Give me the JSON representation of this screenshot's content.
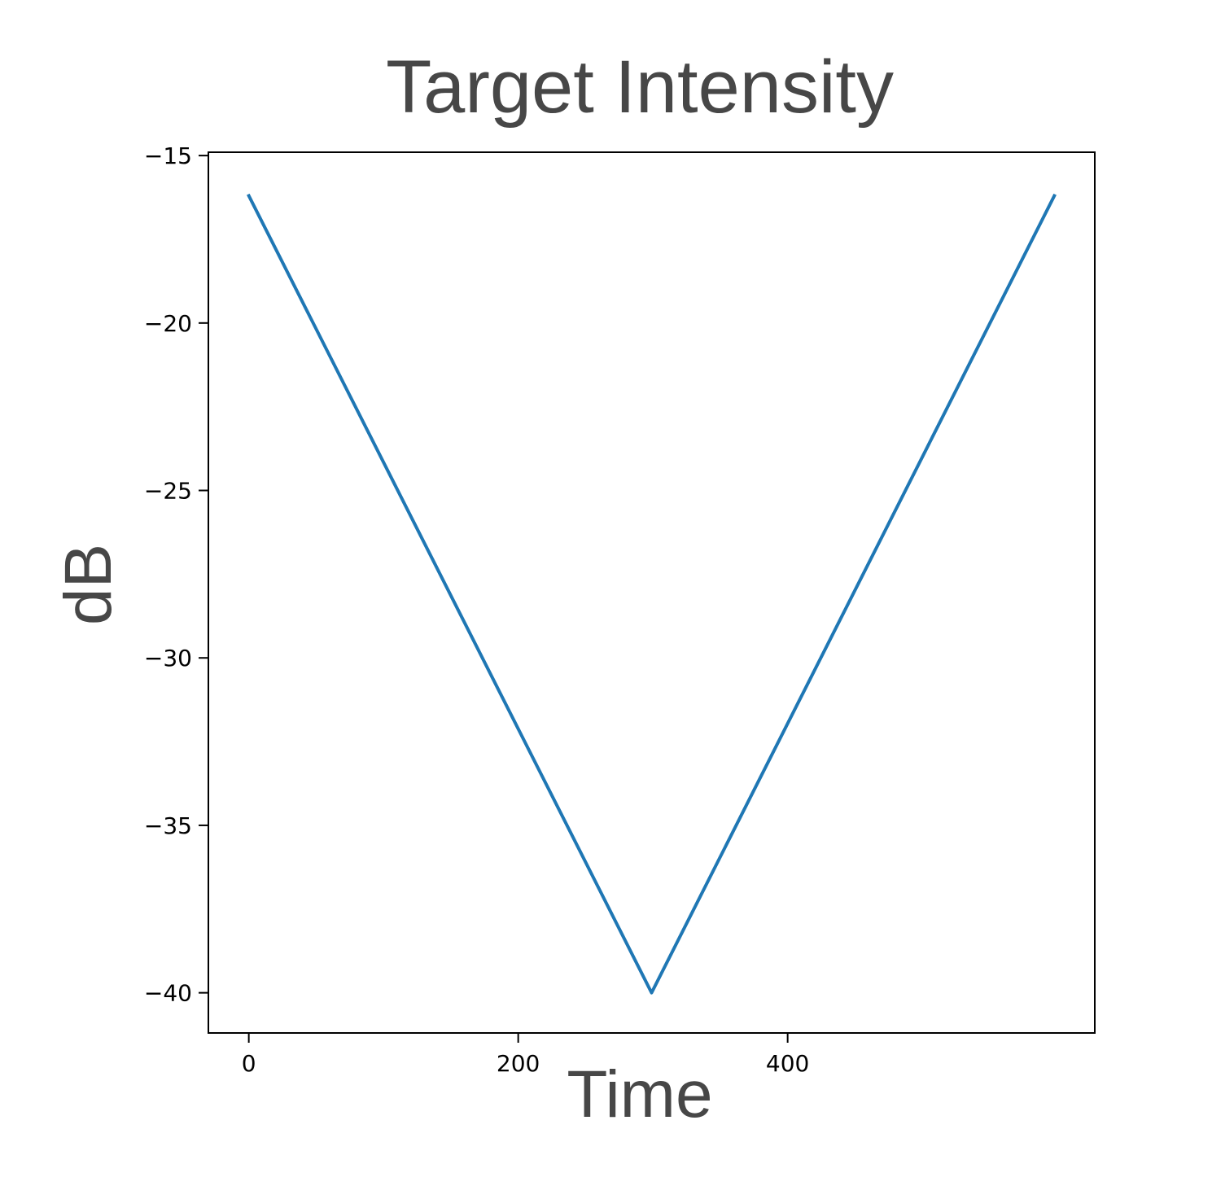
{
  "chart_data": {
    "type": "line",
    "title": "Target Intensity",
    "xlabel": "Time",
    "ylabel": "dB",
    "xlim": [
      -30,
      628
    ],
    "ylim": [
      -41.2,
      -14.9
    ],
    "x_ticks": [
      {
        "value": 0,
        "label": "0"
      },
      {
        "value": 200,
        "label": "200"
      },
      {
        "value": 400,
        "label": "400"
      }
    ],
    "y_ticks": [
      {
        "value": -15,
        "label": "−15"
      },
      {
        "value": -20,
        "label": "−20"
      },
      {
        "value": -25,
        "label": "−25"
      },
      {
        "value": -30,
        "label": "−30"
      },
      {
        "value": -35,
        "label": "−35"
      },
      {
        "value": -40,
        "label": "−40"
      }
    ],
    "grid": false,
    "series": [
      {
        "color": "#1f77b4",
        "x": [
          0,
          299,
          598
        ],
        "y": [
          -16.2,
          -40.0,
          -16.2
        ]
      }
    ]
  }
}
